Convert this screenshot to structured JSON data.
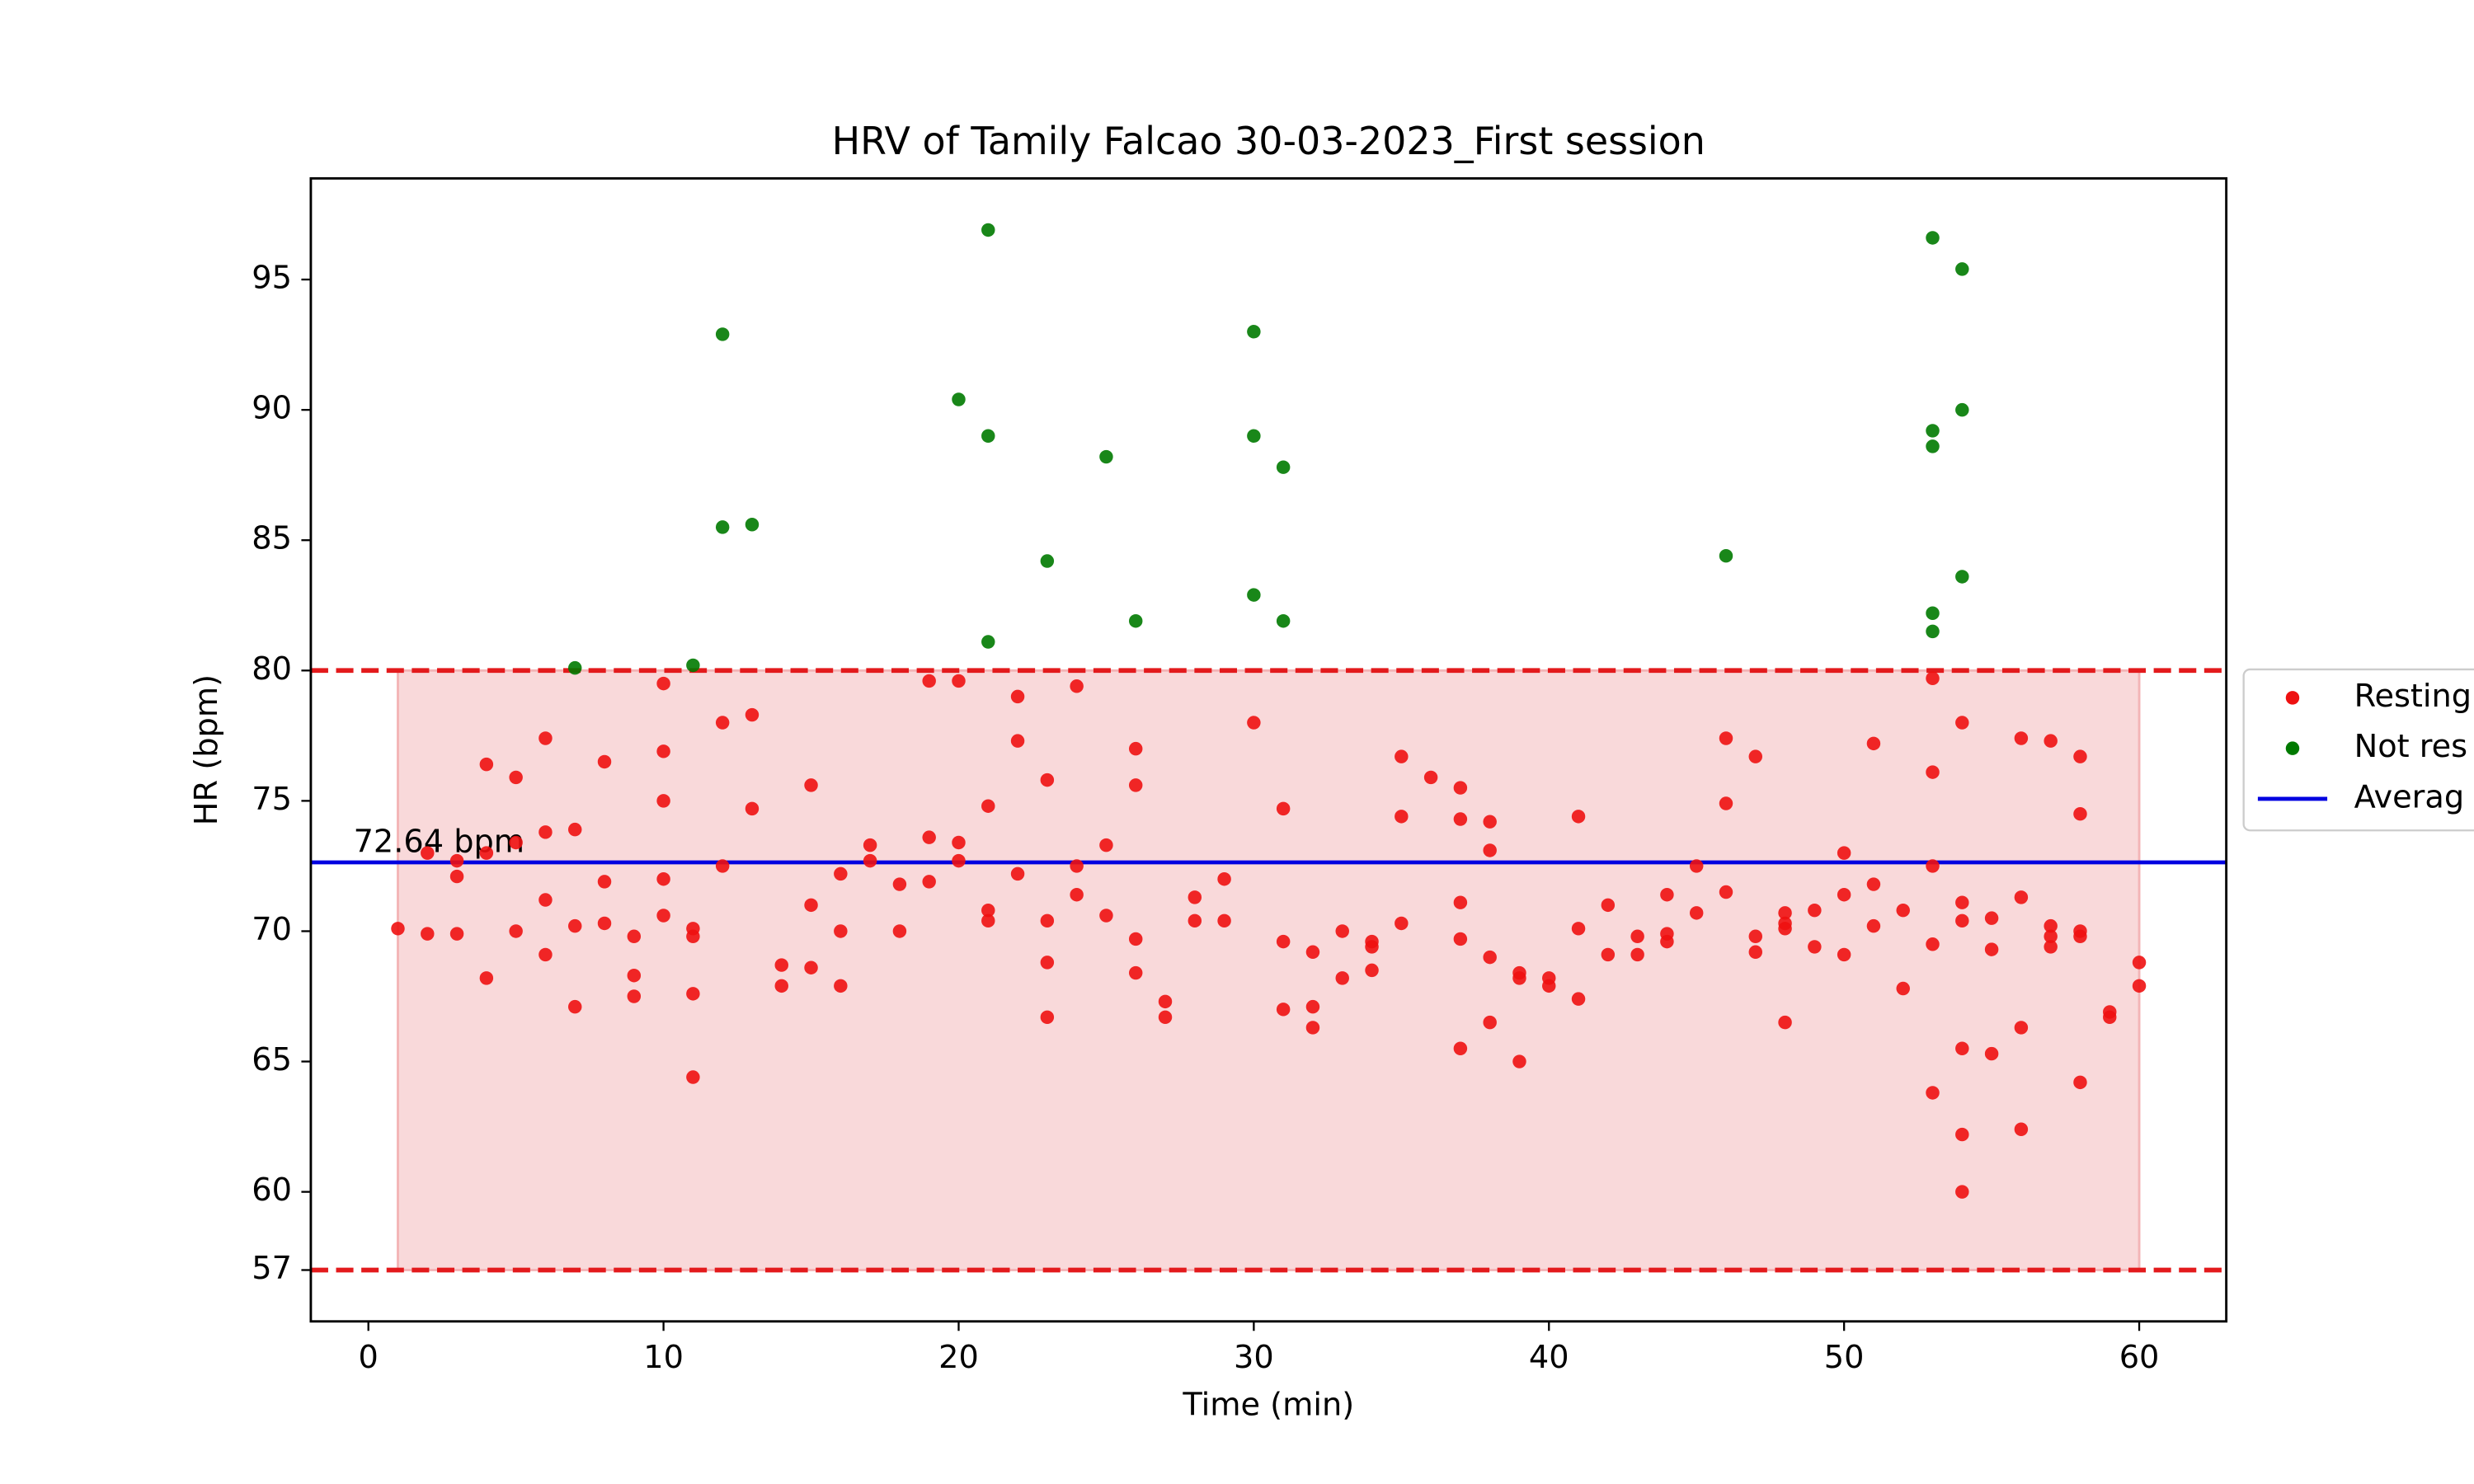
{
  "chart_data": {
    "type": "scatter",
    "title": "HRV of Tamily Falcao 30-03-2023_First session",
    "xlabel": "Time (min)",
    "ylabel": "HR (bpm)",
    "xlim": [
      -1.95,
      62.95
    ],
    "ylim": [
      55.03,
      98.88
    ],
    "xticks": [
      0,
      10,
      20,
      30,
      40,
      50,
      60
    ],
    "yticks": [
      57,
      60,
      65,
      70,
      75,
      80,
      85,
      90,
      95
    ],
    "hlines": [
      80,
      57
    ],
    "hline_color": "#e31a1c",
    "band": {
      "x": [
        1,
        60
      ],
      "y": [
        57,
        80
      ],
      "color": "#f3b4b6"
    },
    "average": {
      "name": "Averag",
      "value": 72.64,
      "color": "#0000e0",
      "annotation": "72.64 bpm"
    },
    "series": [
      {
        "name": "Resting",
        "color": "#ee1111",
        "x": [
          1,
          2,
          2,
          3,
          3,
          3,
          4,
          4,
          4,
          5,
          5,
          5,
          6,
          6,
          6,
          6,
          7,
          7,
          7,
          8,
          8,
          8,
          9,
          9,
          9,
          10,
          10,
          10,
          10,
          10,
          11,
          11,
          11,
          11,
          12,
          12,
          13,
          13,
          14,
          14,
          15,
          15,
          15,
          16,
          16,
          16,
          17,
          17,
          18,
          18,
          19,
          19,
          19,
          20,
          20,
          20,
          21,
          21,
          21,
          22,
          22,
          22,
          23,
          23,
          23,
          23,
          24,
          24,
          24,
          25,
          25,
          26,
          26,
          26,
          26,
          27,
          27,
          28,
          28,
          29,
          29,
          30,
          31,
          31,
          31,
          32,
          32,
          32,
          33,
          33,
          34,
          34,
          34,
          35,
          35,
          35,
          36,
          37,
          37,
          37,
          37,
          37,
          38,
          38,
          38,
          38,
          39,
          39,
          39,
          40,
          40,
          41,
          41,
          41,
          42,
          42,
          43,
          43,
          44,
          44,
          44,
          45,
          45,
          46,
          46,
          46,
          47,
          47,
          47,
          48,
          48,
          48,
          48,
          49,
          49,
          50,
          50,
          50,
          51,
          51,
          51,
          52,
          52,
          53,
          53,
          53,
          53,
          53,
          54,
          54,
          54,
          54,
          54,
          54,
          55,
          55,
          55,
          56,
          56,
          56,
          56,
          57,
          57,
          57,
          57,
          58,
          58,
          58,
          58,
          58,
          59,
          59,
          60,
          60
        ],
        "y": [
          70.1,
          73.0,
          69.9,
          72.7,
          72.1,
          69.9,
          76.4,
          73.0,
          68.2,
          75.9,
          73.4,
          70.0,
          77.4,
          73.8,
          71.2,
          69.1,
          73.9,
          70.2,
          67.1,
          76.5,
          71.9,
          70.3,
          69.8,
          68.3,
          67.5,
          79.5,
          76.9,
          75.0,
          72.0,
          70.6,
          70.1,
          69.8,
          67.6,
          64.4,
          78.0,
          72.5,
          78.3,
          74.7,
          68.7,
          67.9,
          75.6,
          71.0,
          68.6,
          72.2,
          70.0,
          67.9,
          73.3,
          72.7,
          71.8,
          70.0,
          79.6,
          73.6,
          71.9,
          79.6,
          73.4,
          72.7,
          74.8,
          70.8,
          70.4,
          79.0,
          77.3,
          72.2,
          75.8,
          70.4,
          68.8,
          66.7,
          79.4,
          72.5,
          71.4,
          73.3,
          70.6,
          77.0,
          75.6,
          69.7,
          68.4,
          67.3,
          66.7,
          71.3,
          70.4,
          72.0,
          70.4,
          78.0,
          74.7,
          69.6,
          67.0,
          69.2,
          67.1,
          66.3,
          70.0,
          68.2,
          69.6,
          69.4,
          68.5,
          76.7,
          74.4,
          70.3,
          75.9,
          75.5,
          74.3,
          71.1,
          69.7,
          65.5,
          74.2,
          73.1,
          69.0,
          66.5,
          68.4,
          68.2,
          65.0,
          68.2,
          67.9,
          74.4,
          70.1,
          67.4,
          71.0,
          69.1,
          69.8,
          69.1,
          71.4,
          69.9,
          69.6,
          72.5,
          70.7,
          77.4,
          74.9,
          71.5,
          76.7,
          69.8,
          69.2,
          70.7,
          70.3,
          70.1,
          66.5,
          70.8,
          69.4,
          73.0,
          71.4,
          69.1,
          77.2,
          71.8,
          70.2,
          70.8,
          67.8,
          79.7,
          76.1,
          72.5,
          69.5,
          63.8,
          78.0,
          71.1,
          70.4,
          65.5,
          62.2,
          60.0,
          70.5,
          69.3,
          65.3,
          77.4,
          71.3,
          66.3,
          62.4,
          77.3,
          70.2,
          69.8,
          69.4,
          76.7,
          74.5,
          70.0,
          69.8,
          64.2,
          66.9,
          66.7,
          68.8,
          67.9
        ]
      },
      {
        "name": "Not res",
        "color": "#007a00",
        "x": [
          7,
          11,
          12,
          12,
          13,
          20,
          21,
          21,
          21,
          23,
          25,
          26,
          30,
          30,
          30,
          31,
          31,
          46,
          53,
          53,
          53,
          53,
          53,
          54,
          54,
          54
        ],
        "y": [
          80.1,
          80.2,
          92.9,
          85.5,
          85.6,
          90.4,
          96.9,
          89.0,
          81.1,
          84.2,
          88.2,
          81.9,
          93.0,
          89.0,
          82.9,
          87.8,
          81.9,
          84.4,
          96.6,
          89.2,
          88.6,
          82.2,
          81.5,
          95.4,
          90.0,
          83.6
        ]
      }
    ]
  }
}
